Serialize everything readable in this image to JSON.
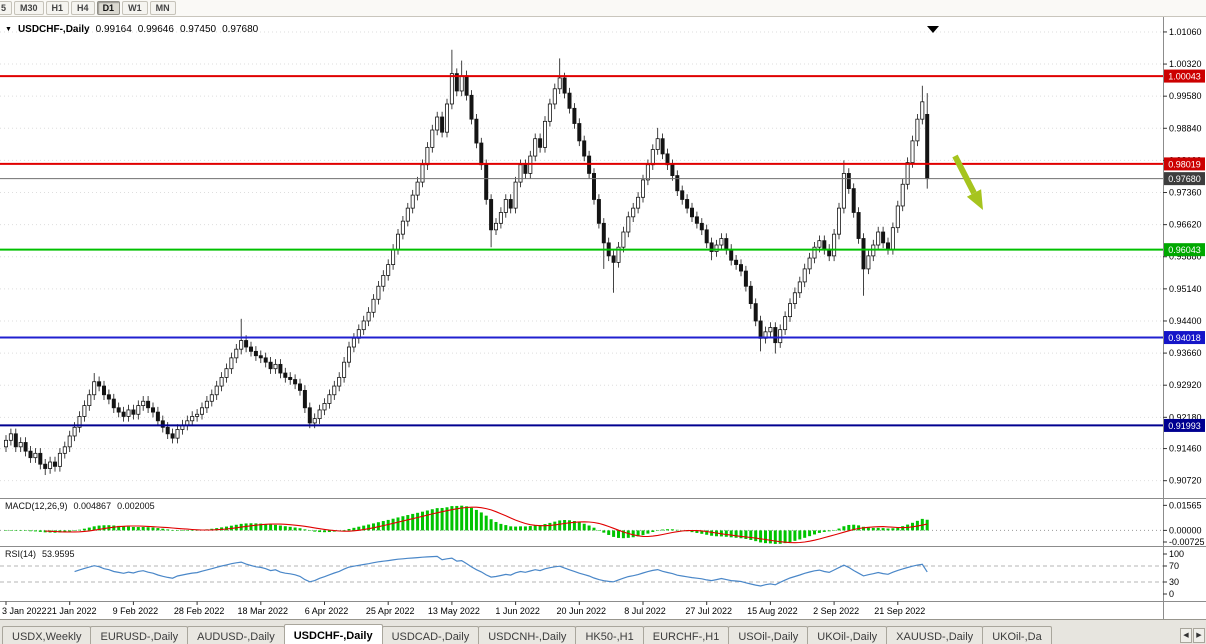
{
  "toolbar": {
    "timeframes": [
      {
        "label": "5",
        "active": false
      },
      {
        "label": "M30",
        "active": false
      },
      {
        "label": "H1",
        "active": false
      },
      {
        "label": "H4",
        "active": false
      },
      {
        "label": "D1",
        "active": true
      },
      {
        "label": "W1",
        "active": false
      },
      {
        "label": "MN",
        "active": false
      }
    ]
  },
  "chart": {
    "title_symbol": "USDCHF-,Daily",
    "ohlc": {
      "open": "0.99164",
      "high": "0.99646",
      "low": "0.97450",
      "close": "0.97680"
    },
    "price_axis": {
      "ticks": [
        "1.01060",
        "1.00320",
        "0.99580",
        "0.98840",
        "0.98100",
        "0.97360",
        "0.96620",
        "0.95880",
        "0.95140",
        "0.94400",
        "0.93660",
        "0.92920",
        "0.92180",
        "0.91460",
        "0.90720"
      ]
    },
    "levels": [
      {
        "label": "1.00043",
        "price": 1.00043,
        "color": "#E00000",
        "badge": "#CC0000",
        "width": 2
      },
      {
        "label": "0.98019",
        "price": 0.98019,
        "color": "#E00000",
        "badge": "#CC0000",
        "width": 2
      },
      {
        "label": "0.97680",
        "price": 0.9768,
        "color": "#707070",
        "badge": "#3D3D3D",
        "width": 1
      },
      {
        "label": "0.96043",
        "price": 0.96043,
        "color": "#00C000",
        "badge": "#00A800",
        "width": 2
      },
      {
        "label": "0.94018",
        "price": 0.94018,
        "color": "#2020D0",
        "badge": "#1515C8",
        "width": 2
      },
      {
        "label": "0.91993",
        "price": 0.91993,
        "color": "#000090",
        "badge": "#000090",
        "width": 2
      }
    ],
    "annotation": {
      "type": "down-right-arrow",
      "color": "#A6C41E"
    },
    "dates": [
      "3 Jan 2022",
      "21 Jan 2022",
      "9 Feb 2022",
      "28 Feb 2022",
      "18 Mar 2022",
      "6 Apr 2022",
      "25 Apr 2022",
      "13 May 2022",
      "1 Jun 2022",
      "20 Jun 2022",
      "8 Jul 2022",
      "27 Jul 2022",
      "15 Aug 2022",
      "2 Sep 2022",
      "21 Sep 2022"
    ],
    "candles": [
      [
        0.915,
        0.9177,
        0.9138,
        0.9165
      ],
      [
        0.9165,
        0.9192,
        0.9153,
        0.918
      ],
      [
        0.918,
        0.9192,
        0.9138,
        0.915
      ],
      [
        0.915,
        0.9172,
        0.9138,
        0.916
      ],
      [
        0.916,
        0.9172,
        0.9128,
        0.914
      ],
      [
        0.914,
        0.9152,
        0.9113,
        0.9125
      ],
      [
        0.9125,
        0.9147,
        0.9113,
        0.9135
      ],
      [
        0.9135,
        0.9147,
        0.9098,
        0.911
      ],
      [
        0.911,
        0.9122,
        0.9085,
        0.91
      ],
      [
        0.91,
        0.9127,
        0.9088,
        0.9115
      ],
      [
        0.9115,
        0.9127,
        0.9093,
        0.9105
      ],
      [
        0.9105,
        0.9147,
        0.9093,
        0.9135
      ],
      [
        0.9135,
        0.9162,
        0.9123,
        0.915
      ],
      [
        0.915,
        0.9187,
        0.9138,
        0.9175
      ],
      [
        0.9175,
        0.9207,
        0.9163,
        0.9195
      ],
      [
        0.9195,
        0.9232,
        0.9183,
        0.922
      ],
      [
        0.922,
        0.9257,
        0.9208,
        0.9245
      ],
      [
        0.9245,
        0.9282,
        0.9233,
        0.927
      ],
      [
        0.927,
        0.932,
        0.9258,
        0.93
      ],
      [
        0.93,
        0.9312,
        0.9278,
        0.929
      ],
      [
        0.929,
        0.9302,
        0.9258,
        0.927
      ],
      [
        0.927,
        0.9282,
        0.9248,
        0.926
      ],
      [
        0.926,
        0.9272,
        0.9228,
        0.924
      ],
      [
        0.924,
        0.9252,
        0.9218,
        0.923
      ],
      [
        0.923,
        0.9242,
        0.9208,
        0.922
      ],
      [
        0.922,
        0.9247,
        0.9208,
        0.9235
      ],
      [
        0.9235,
        0.9247,
        0.9213,
        0.9225
      ],
      [
        0.9225,
        0.9257,
        0.9213,
        0.9245
      ],
      [
        0.9245,
        0.9267,
        0.9233,
        0.9255
      ],
      [
        0.9255,
        0.9267,
        0.9228,
        0.924
      ],
      [
        0.924,
        0.9252,
        0.9218,
        0.923
      ],
      [
        0.923,
        0.9242,
        0.9198,
        0.921
      ],
      [
        0.921,
        0.9222,
        0.9183,
        0.9195
      ],
      [
        0.9195,
        0.9207,
        0.9168,
        0.918
      ],
      [
        0.918,
        0.9192,
        0.9158,
        0.917
      ],
      [
        0.917,
        0.9202,
        0.9158,
        0.919
      ],
      [
        0.919,
        0.9212,
        0.9178,
        0.92
      ],
      [
        0.92,
        0.9222,
        0.9188,
        0.921
      ],
      [
        0.921,
        0.9232,
        0.9198,
        0.922
      ],
      [
        0.922,
        0.9237,
        0.9208,
        0.9225
      ],
      [
        0.9225,
        0.9252,
        0.9213,
        0.924
      ],
      [
        0.924,
        0.9267,
        0.9228,
        0.9255
      ],
      [
        0.9255,
        0.9282,
        0.9243,
        0.927
      ],
      [
        0.927,
        0.9302,
        0.9258,
        0.929
      ],
      [
        0.929,
        0.9322,
        0.9278,
        0.931
      ],
      [
        0.931,
        0.9342,
        0.9298,
        0.933
      ],
      [
        0.933,
        0.9367,
        0.9318,
        0.9355
      ],
      [
        0.9355,
        0.9387,
        0.9343,
        0.9375
      ],
      [
        0.9375,
        0.9445,
        0.9363,
        0.9395
      ],
      [
        0.9395,
        0.9407,
        0.9368,
        0.938
      ],
      [
        0.938,
        0.9392,
        0.9358,
        0.937
      ],
      [
        0.937,
        0.9382,
        0.9348,
        0.936
      ],
      [
        0.936,
        0.9372,
        0.9343,
        0.9355
      ],
      [
        0.9355,
        0.9367,
        0.9333,
        0.9345
      ],
      [
        0.9345,
        0.9357,
        0.9318,
        0.933
      ],
      [
        0.933,
        0.9352,
        0.9318,
        0.934
      ],
      [
        0.934,
        0.9352,
        0.9308,
        0.932
      ],
      [
        0.932,
        0.9332,
        0.9298,
        0.931
      ],
      [
        0.931,
        0.9322,
        0.9293,
        0.9305
      ],
      [
        0.9305,
        0.9317,
        0.9283,
        0.9295
      ],
      [
        0.9295,
        0.9307,
        0.9268,
        0.928
      ],
      [
        0.928,
        0.9292,
        0.9228,
        0.924
      ],
      [
        0.924,
        0.9252,
        0.9193,
        0.9205
      ],
      [
        0.9205,
        0.9227,
        0.9193,
        0.9215
      ],
      [
        0.9215,
        0.9247,
        0.9203,
        0.9235
      ],
      [
        0.9235,
        0.9262,
        0.9223,
        0.925
      ],
      [
        0.925,
        0.9282,
        0.9238,
        0.927
      ],
      [
        0.927,
        0.9302,
        0.9258,
        0.929
      ],
      [
        0.929,
        0.9322,
        0.9278,
        0.931
      ],
      [
        0.931,
        0.9357,
        0.9298,
        0.9345
      ],
      [
        0.9345,
        0.9392,
        0.9333,
        0.938
      ],
      [
        0.938,
        0.9412,
        0.9368,
        0.94
      ],
      [
        0.94,
        0.9432,
        0.9388,
        0.942
      ],
      [
        0.942,
        0.9452,
        0.9408,
        0.944
      ],
      [
        0.944,
        0.9472,
        0.9428,
        0.946
      ],
      [
        0.946,
        0.9502,
        0.9448,
        0.949
      ],
      [
        0.949,
        0.9532,
        0.9478,
        0.952
      ],
      [
        0.952,
        0.9557,
        0.9508,
        0.9545
      ],
      [
        0.9545,
        0.9582,
        0.9533,
        0.957
      ],
      [
        0.957,
        0.9617,
        0.9558,
        0.9605
      ],
      [
        0.9605,
        0.9652,
        0.9593,
        0.964
      ],
      [
        0.964,
        0.9682,
        0.9628,
        0.967
      ],
      [
        0.967,
        0.9712,
        0.9658,
        0.97
      ],
      [
        0.97,
        0.9742,
        0.9688,
        0.973
      ],
      [
        0.973,
        0.9772,
        0.9718,
        0.976
      ],
      [
        0.976,
        0.9812,
        0.9748,
        0.98
      ],
      [
        0.98,
        0.9852,
        0.9788,
        0.984
      ],
      [
        0.984,
        0.9892,
        0.9828,
        0.988
      ],
      [
        0.988,
        0.9922,
        0.9868,
        0.991
      ],
      [
        0.991,
        0.9922,
        0.9863,
        0.9875
      ],
      [
        0.9875,
        0.9952,
        0.9863,
        0.994
      ],
      [
        0.994,
        1.0065,
        0.9928,
        1.001
      ],
      [
        1.001,
        1.0022,
        0.9958,
        0.997
      ],
      [
        0.997,
        1.004,
        0.9958,
        1.0005
      ],
      [
        1.0005,
        1.0017,
        0.9948,
        0.996
      ],
      [
        0.996,
        0.9972,
        0.9893,
        0.9905
      ],
      [
        0.9905,
        0.9917,
        0.9838,
        0.985
      ],
      [
        0.985,
        0.9862,
        0.9788,
        0.98
      ],
      [
        0.98,
        0.9812,
        0.9708,
        0.972
      ],
      [
        0.972,
        0.9732,
        0.961,
        0.965
      ],
      [
        0.965,
        0.9677,
        0.9638,
        0.9665
      ],
      [
        0.9665,
        0.9702,
        0.9653,
        0.969
      ],
      [
        0.969,
        0.9732,
        0.9678,
        0.972
      ],
      [
        0.972,
        0.9732,
        0.9688,
        0.97
      ],
      [
        0.97,
        0.9772,
        0.9688,
        0.976
      ],
      [
        0.976,
        0.9812,
        0.9748,
        0.98
      ],
      [
        0.98,
        0.9812,
        0.9768,
        0.978
      ],
      [
        0.978,
        0.9832,
        0.9768,
        0.982
      ],
      [
        0.982,
        0.9872,
        0.9808,
        0.986
      ],
      [
        0.986,
        0.9872,
        0.9828,
        0.984
      ],
      [
        0.984,
        0.9912,
        0.9828,
        0.99
      ],
      [
        0.99,
        0.9952,
        0.9888,
        0.994
      ],
      [
        0.994,
        0.9987,
        0.9928,
        0.9975
      ],
      [
        0.9975,
        1.0045,
        0.9963,
        1.0
      ],
      [
        1.0,
        1.0012,
        0.9953,
        0.9965
      ],
      [
        0.9965,
        0.9977,
        0.9918,
        0.993
      ],
      [
        0.993,
        0.9942,
        0.9883,
        0.9895
      ],
      [
        0.9895,
        0.9907,
        0.9843,
        0.9855
      ],
      [
        0.9855,
        0.9867,
        0.9808,
        0.982
      ],
      [
        0.982,
        0.9832,
        0.9768,
        0.978
      ],
      [
        0.978,
        0.9792,
        0.9708,
        0.972
      ],
      [
        0.972,
        0.9732,
        0.9653,
        0.9665
      ],
      [
        0.9665,
        0.9677,
        0.956,
        0.962
      ],
      [
        0.962,
        0.9632,
        0.9578,
        0.959
      ],
      [
        0.959,
        0.9602,
        0.9505,
        0.9575
      ],
      [
        0.9575,
        0.9622,
        0.9563,
        0.961
      ],
      [
        0.961,
        0.9657,
        0.9598,
        0.9645
      ],
      [
        0.9645,
        0.9692,
        0.9633,
        0.968
      ],
      [
        0.968,
        0.9712,
        0.9668,
        0.97
      ],
      [
        0.97,
        0.9737,
        0.9688,
        0.9725
      ],
      [
        0.9725,
        0.9777,
        0.9713,
        0.9765
      ],
      [
        0.9765,
        0.9812,
        0.9753,
        0.98
      ],
      [
        0.98,
        0.9847,
        0.9788,
        0.9835
      ],
      [
        0.9835,
        0.9885,
        0.9823,
        0.986
      ],
      [
        0.986,
        0.9872,
        0.9813,
        0.9825
      ],
      [
        0.9825,
        0.9837,
        0.9788,
        0.98
      ],
      [
        0.98,
        0.9812,
        0.9763,
        0.9775
      ],
      [
        0.9775,
        0.9787,
        0.9728,
        0.974
      ],
      [
        0.974,
        0.9752,
        0.9708,
        0.972
      ],
      [
        0.972,
        0.9732,
        0.9688,
        0.97
      ],
      [
        0.97,
        0.9712,
        0.9668,
        0.968
      ],
      [
        0.968,
        0.9692,
        0.9653,
        0.9665
      ],
      [
        0.9665,
        0.9677,
        0.9638,
        0.965
      ],
      [
        0.965,
        0.9662,
        0.9608,
        0.962
      ],
      [
        0.962,
        0.9632,
        0.958,
        0.96
      ],
      [
        0.96,
        0.9627,
        0.9588,
        0.9615
      ],
      [
        0.9615,
        0.9642,
        0.9603,
        0.963
      ],
      [
        0.963,
        0.9642,
        0.9593,
        0.9605
      ],
      [
        0.9605,
        0.9617,
        0.9568,
        0.958
      ],
      [
        0.958,
        0.9592,
        0.9558,
        0.957
      ],
      [
        0.957,
        0.9582,
        0.9543,
        0.9555
      ],
      [
        0.9555,
        0.9567,
        0.9508,
        0.952
      ],
      [
        0.952,
        0.9532,
        0.9468,
        0.948
      ],
      [
        0.948,
        0.9492,
        0.9428,
        0.944
      ],
      [
        0.944,
        0.9452,
        0.937,
        0.94
      ],
      [
        0.94,
        0.9427,
        0.9388,
        0.9415
      ],
      [
        0.9415,
        0.9437,
        0.9403,
        0.9425
      ],
      [
        0.9425,
        0.9437,
        0.9365,
        0.939
      ],
      [
        0.939,
        0.9432,
        0.9378,
        0.942
      ],
      [
        0.942,
        0.9462,
        0.9408,
        0.945
      ],
      [
        0.945,
        0.9492,
        0.9438,
        0.948
      ],
      [
        0.948,
        0.9517,
        0.9468,
        0.9505
      ],
      [
        0.9505,
        0.9542,
        0.9493,
        0.953
      ],
      [
        0.953,
        0.9572,
        0.9518,
        0.956
      ],
      [
        0.956,
        0.9597,
        0.9548,
        0.9585
      ],
      [
        0.9585,
        0.9622,
        0.9573,
        0.961
      ],
      [
        0.961,
        0.9637,
        0.9598,
        0.9625
      ],
      [
        0.9625,
        0.9637,
        0.9593,
        0.9605
      ],
      [
        0.9605,
        0.9617,
        0.9578,
        0.959
      ],
      [
        0.959,
        0.9652,
        0.9578,
        0.964
      ],
      [
        0.964,
        0.9712,
        0.9628,
        0.97
      ],
      [
        0.97,
        0.981,
        0.9688,
        0.978
      ],
      [
        0.978,
        0.9792,
        0.9733,
        0.9745
      ],
      [
        0.9745,
        0.9757,
        0.9678,
        0.969
      ],
      [
        0.969,
        0.9702,
        0.9618,
        0.963
      ],
      [
        0.963,
        0.9642,
        0.9498,
        0.956
      ],
      [
        0.956,
        0.9602,
        0.9548,
        0.959
      ],
      [
        0.959,
        0.9627,
        0.9578,
        0.9615
      ],
      [
        0.9615,
        0.9657,
        0.9603,
        0.9645
      ],
      [
        0.9645,
        0.9657,
        0.9608,
        0.962
      ],
      [
        0.962,
        0.9632,
        0.9593,
        0.9605
      ],
      [
        0.9605,
        0.9667,
        0.9593,
        0.9655
      ],
      [
        0.9655,
        0.9717,
        0.9643,
        0.9705
      ],
      [
        0.9705,
        0.9767,
        0.9693,
        0.9755
      ],
      [
        0.9755,
        0.9817,
        0.9743,
        0.9805
      ],
      [
        0.9805,
        0.9867,
        0.9793,
        0.9855
      ],
      [
        0.9855,
        0.9917,
        0.9843,
        0.9905
      ],
      [
        0.9905,
        0.9982,
        0.9893,
        0.9945
      ],
      [
        0.9916,
        0.9965,
        0.9745,
        0.9768
      ]
    ]
  },
  "macd": {
    "title": "MACD(12,26,9)",
    "value_main": "0.004867",
    "value_signal": "0.002005",
    "axis": [
      "0.01565",
      "0.00000",
      "-0.00725"
    ],
    "histogram_color": "#00C400",
    "signal_color": "#E00000"
  },
  "rsi": {
    "title": "RSI(14)",
    "value": "53.9595",
    "axis": [
      "100",
      "70",
      "30",
      "0"
    ],
    "levels": [
      70,
      30
    ],
    "line_color": "#4A87C8"
  },
  "tabs": {
    "items": [
      "USDX,Weekly",
      "EURUSD-,Daily",
      "AUDUSD-,Daily",
      "USDCHF-,Daily",
      "USDCAD-,Daily",
      "USDCNH-,Daily",
      "HK50-,H1",
      "EURCHF-,H1",
      "USOil-,Daily",
      "UKOil-,Daily",
      "XAUUSD-,Daily",
      "UKOil-,Da"
    ],
    "active_index": 3,
    "nav_left": "◀",
    "nav_right": "▶"
  }
}
